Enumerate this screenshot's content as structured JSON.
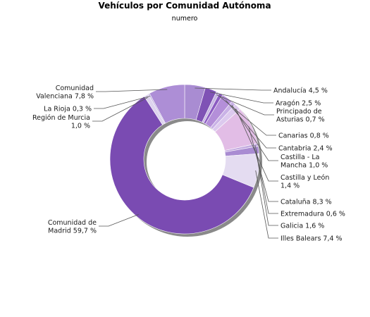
{
  "chart_data": {
    "type": "pie",
    "title": "Vehículos por Comunidad Autónoma",
    "subtitle": "numero",
    "unit": "%",
    "slices": [
      {
        "label": [
          "Andalucía 4,5 %"
        ],
        "value": 4.5,
        "color": "#a98cd2"
      },
      {
        "label": [
          "Aragón 2,5 %"
        ],
        "value": 2.5,
        "color": "#7f52b5"
      },
      {
        "label": [
          "Principado de",
          "Asturias 0,7 %"
        ],
        "value": 0.7,
        "color": "#c7b6e3"
      },
      {
        "label": [
          "Canarias 0,8 %"
        ],
        "value": 0.8,
        "color": "#8c5cc2"
      },
      {
        "label": [
          "Cantabria 2,4 %"
        ],
        "value": 2.4,
        "color": "#b48fd9"
      },
      {
        "label": [
          "Castilla - La",
          "Mancha 1,0 %"
        ],
        "value": 1.0,
        "color": "#c9b2e6"
      },
      {
        "label": [
          "Castilla y León",
          "1,4 %"
        ],
        "value": 1.4,
        "color": "#dcc9ee"
      },
      {
        "label": [
          "Cataluña 8,3 %"
        ],
        "value": 8.3,
        "color": "#e2bde6"
      },
      {
        "label": [
          "Extremadura 0,6 %"
        ],
        "value": 0.6,
        "color": "#c4abe0"
      },
      {
        "label": [
          "Galicia 1,6 %"
        ],
        "value": 1.6,
        "color": "#a98cd2"
      },
      {
        "label": [
          "Illes Balears 7,4 %"
        ],
        "value": 7.4,
        "color": "#e4dcf1"
      },
      {
        "label": [
          "Comunidad de",
          "Madrid 59,7 %"
        ],
        "value": 59.7,
        "color": "#7a4bb2"
      },
      {
        "label": [
          "Región de Murcia",
          "1,0 %"
        ],
        "value": 1.0,
        "color": "#ddd3ee"
      },
      {
        "label": [
          "La Rioja 0,3 %"
        ],
        "value": 0.3,
        "color": "#bdaedd"
      },
      {
        "label": [
          "Comunidad",
          "Valenciana 7,8 %"
        ],
        "value": 7.8,
        "color": "#ad8ed6"
      }
    ]
  }
}
